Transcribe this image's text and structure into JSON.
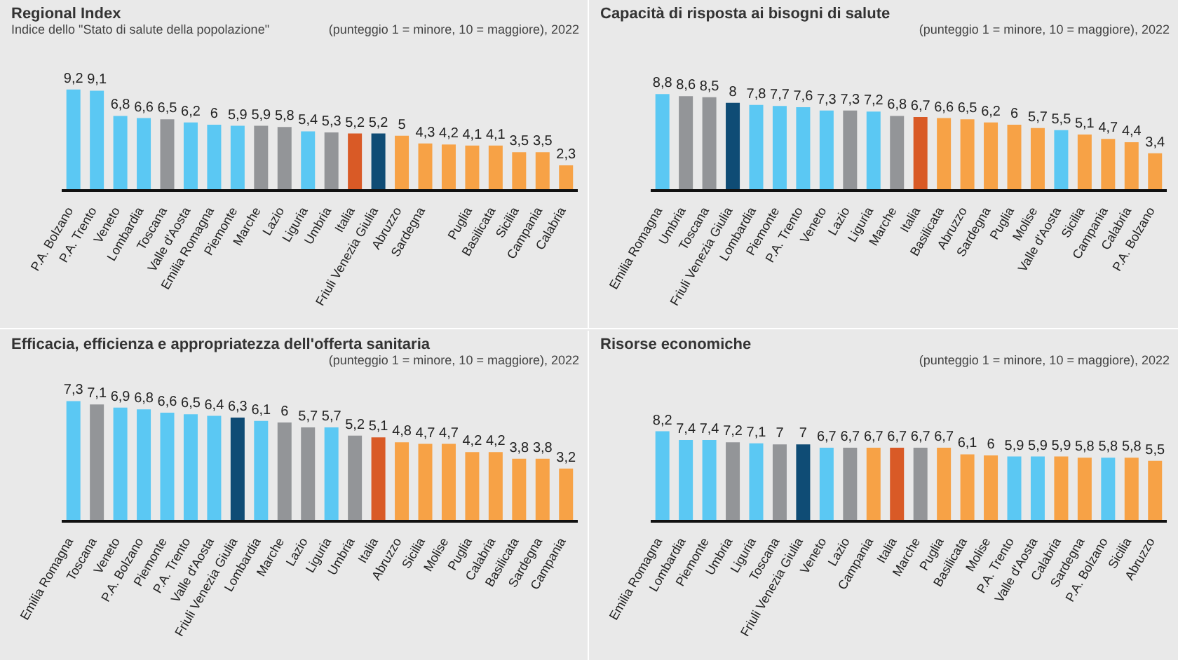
{
  "chart_data": [
    {
      "type": "bar",
      "title": "Regional Index",
      "subtitle": "Indice dello \"Stato di salute della popolazione\"",
      "annotations": [
        "(punteggio 1 = minore, 10 = maggiore), 2022"
      ],
      "categories": [
        "P.A. Bolzano",
        "P.A. Trento",
        "Veneto",
        "Lombardia",
        "Toscana",
        "Valle d'Aosta",
        "Emilia Romagna",
        "Piemonte",
        "Marche",
        "Lazio",
        "Liguria",
        "Umbria",
        "Italia",
        "Friuli Venezia Giulia",
        "Abruzzo",
        "Sardegna",
        null,
        "Puglia",
        "Basilicata",
        "Sicilia",
        "Campania",
        "Calabria"
      ],
      "values": [
        9.2,
        9.1,
        6.8,
        6.6,
        6.5,
        6.2,
        6,
        5.9,
        5.9,
        5.8,
        5.4,
        5.3,
        5.2,
        5.2,
        5,
        4.3,
        4.2,
        4.1,
        4.1,
        3.5,
        3.5,
        2.3
      ],
      "value_labels": [
        "9,2",
        "9,1",
        "6,8",
        "6,6",
        "6,5",
        "6,2",
        "6",
        "5,9",
        "5,9",
        "5,8",
        "5,4",
        "5,3",
        "5,2",
        "5,2",
        "5",
        "4,3",
        "4,2",
        "4,1",
        "4,1",
        "3,5",
        "3,5",
        "2,3"
      ],
      "colors": [
        "#5bc8f3",
        "#5bc8f3",
        "#5bc8f3",
        "#5bc8f3",
        "#939598",
        "#5bc8f3",
        "#5bc8f3",
        "#5bc8f3",
        "#939598",
        "#939598",
        "#5bc8f3",
        "#939598",
        "#d95a26",
        "#0f4c75",
        "#f7a246",
        "#f7a246",
        "#f7a246",
        "#f7a246",
        "#f7a246",
        "#f7a246",
        "#f7a246",
        "#f7a246"
      ]
    },
    {
      "type": "bar",
      "title": "Capacità di risposta ai bisogni di salute",
      "annotations": [
        "(punteggio 1 = minore, 10 = maggiore), 2022"
      ],
      "categories": [
        "Emilia Romagna",
        "Umbria",
        "Toscana",
        "Friuli Venezia Giulia",
        "Lombardia",
        "Piemonte",
        "P.A. Trento",
        "Veneto",
        "Lazio",
        "Liguria",
        "Marche",
        "Italia",
        "Basilicata",
        "Abruzzo",
        "Sardegna",
        "Puglia",
        "Molise",
        "Valle d'Aosta",
        "Sicilia",
        "Campania",
        "Calabria",
        "P.A. Bolzano"
      ],
      "values": [
        8.8,
        8.6,
        8.5,
        8,
        7.8,
        7.7,
        7.6,
        7.3,
        7.3,
        7.2,
        6.8,
        6.7,
        6.6,
        6.5,
        6.2,
        6,
        5.7,
        5.5,
        5.1,
        4.7,
        4.4,
        3.4
      ],
      "value_labels": [
        "8,8",
        "8,6",
        "8,5",
        "8",
        "7,8",
        "7,7",
        "7,6",
        "7,3",
        "7,3",
        "7,2",
        "6,8",
        "6,7",
        "6,6",
        "6,5",
        "6,2",
        "6",
        "5,7",
        "5,5",
        "5,1",
        "4,7",
        "4,4",
        "3,4"
      ],
      "colors": [
        "#5bc8f3",
        "#939598",
        "#939598",
        "#0f4c75",
        "#5bc8f3",
        "#5bc8f3",
        "#5bc8f3",
        "#5bc8f3",
        "#939598",
        "#5bc8f3",
        "#939598",
        "#d95a26",
        "#f7a246",
        "#f7a246",
        "#f7a246",
        "#f7a246",
        "#f7a246",
        "#5bc8f3",
        "#f7a246",
        "#f7a246",
        "#f7a246",
        "#f7a246"
      ]
    },
    {
      "type": "bar",
      "title": "Efficacia, efficienza e appropriatezza dell'offerta sanitaria",
      "annotations": [
        "(punteggio 1 = minore, 10 = maggiore), 2022"
      ],
      "categories": [
        "Emilia Romagna",
        "Toscana",
        "Veneto",
        "P.A. Bolzano",
        "Piemonte",
        "P.A. Trento",
        "Valle d'Aosta",
        "Friuli Venezia Giulia",
        "Lombardia",
        "Marche",
        "Lazio",
        "Liguria",
        "Umbria",
        "Italia",
        "Abruzzo",
        "Sicilia",
        "Molise",
        "Puglia",
        "Calabria",
        "Basilicata",
        "Sardegna",
        "Campania"
      ],
      "values": [
        7.3,
        7.1,
        6.9,
        6.8,
        6.6,
        6.5,
        6.4,
        6.3,
        6.1,
        6,
        5.7,
        5.7,
        5.2,
        5.1,
        4.8,
        4.7,
        4.7,
        4.2,
        4.2,
        3.8,
        3.8,
        3.2
      ],
      "value_labels": [
        "7,3",
        "7,1",
        "6,9",
        "6,8",
        "6,6",
        "6,5",
        "6,4",
        "6,3",
        "6,1",
        "6",
        "5,7",
        "5,7",
        "5,2",
        "5,1",
        "4,8",
        "4,7",
        "4,7",
        "4,2",
        "4,2",
        "3,8",
        "3,8",
        "3,2"
      ],
      "colors": [
        "#5bc8f3",
        "#939598",
        "#5bc8f3",
        "#5bc8f3",
        "#5bc8f3",
        "#5bc8f3",
        "#5bc8f3",
        "#0f4c75",
        "#5bc8f3",
        "#939598",
        "#939598",
        "#5bc8f3",
        "#939598",
        "#d95a26",
        "#f7a246",
        "#f7a246",
        "#f7a246",
        "#f7a246",
        "#f7a246",
        "#f7a246",
        "#f7a246",
        "#f7a246"
      ]
    },
    {
      "type": "bar",
      "title": "Risorse economiche",
      "annotations": [
        "(punteggio 1 = minore, 10 = maggiore), 2022"
      ],
      "categories": [
        "Emilia Romagna",
        "Lombardia",
        "Piemonte",
        "Umbria",
        "Liguria",
        "Toscana",
        "Friuli Venezia Giulia",
        "Veneto",
        "Lazio",
        "Campania",
        "Italia",
        "Marche",
        "Puglia",
        "Basilicata",
        "Molise",
        "P.A. Trento",
        "Valle d'Aosta",
        "Calabria",
        "Sardegna",
        "P.A. Bolzano",
        "Sicilia",
        "Abruzzo"
      ],
      "values": [
        8.2,
        7.4,
        7.4,
        7.2,
        7.1,
        7,
        7,
        6.7,
        6.7,
        6.7,
        6.7,
        6.7,
        6.7,
        6.1,
        6,
        5.9,
        5.9,
        5.9,
        5.8,
        5.8,
        5.8,
        5.5
      ],
      "value_labels": [
        "8,2",
        "7,4",
        "7,4",
        "7,2",
        "7,1",
        "7",
        "7",
        "6,7",
        "6,7",
        "6,7",
        "6,7",
        "6,7",
        "6,7",
        "6,1",
        "6",
        "5,9",
        "5,9",
        "5,9",
        "5,8",
        "5,8",
        "5,8",
        "5,5"
      ],
      "colors": [
        "#5bc8f3",
        "#5bc8f3",
        "#5bc8f3",
        "#939598",
        "#5bc8f3",
        "#939598",
        "#0f4c75",
        "#5bc8f3",
        "#939598",
        "#f7a246",
        "#d95a26",
        "#939598",
        "#f7a246",
        "#f7a246",
        "#f7a246",
        "#5bc8f3",
        "#5bc8f3",
        "#f7a246",
        "#f7a246",
        "#5bc8f3",
        "#f7a246",
        "#f7a246"
      ]
    }
  ]
}
